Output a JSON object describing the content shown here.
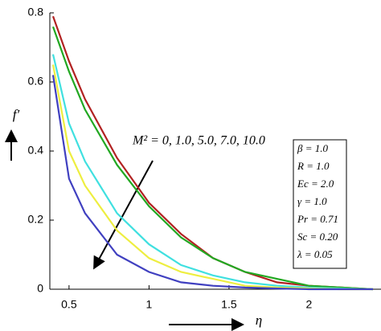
{
  "chart_data": {
    "type": "line",
    "x_label": "η",
    "y_label": "f′",
    "annotation": "M² = 0, 1.0, 5.0, 7.0, 10.0",
    "parameters": [
      "β = 1.0",
      "R = 1.0",
      "Ec = 2.0",
      "γ = 1.0",
      "Pr = 0.71",
      "Sc = 0.20",
      "λ = 0.05"
    ],
    "x": [
      0.4,
      0.5,
      0.6,
      0.8,
      1.0,
      1.2,
      1.4,
      1.6,
      1.8,
      2.0,
      2.2,
      2.4
    ],
    "series": [
      {
        "color": "#b22222",
        "values": [
          0.79,
          0.66,
          0.55,
          0.38,
          0.25,
          0.16,
          0.09,
          0.05,
          0.02,
          0.01,
          0.005,
          0
        ]
      },
      {
        "color": "#22a822",
        "values": [
          0.76,
          0.63,
          0.52,
          0.36,
          0.24,
          0.15,
          0.09,
          0.05,
          0.03,
          0.01,
          0.005,
          0
        ]
      },
      {
        "color": "#40e0e0",
        "values": [
          0.68,
          0.48,
          0.37,
          0.22,
          0.13,
          0.07,
          0.04,
          0.02,
          0.01,
          0.005,
          0.002,
          0
        ]
      },
      {
        "color": "#eeee40",
        "values": [
          0.65,
          0.4,
          0.3,
          0.17,
          0.09,
          0.05,
          0.03,
          0.01,
          0.005,
          0.002,
          0,
          0
        ]
      },
      {
        "color": "#4040c0",
        "values": [
          0.62,
          0.32,
          0.22,
          0.1,
          0.05,
          0.02,
          0.01,
          0.005,
          0.002,
          0,
          0,
          0
        ]
      }
    ],
    "xlim": [
      0.38,
      2.45
    ],
    "ylim": [
      0,
      0.8
    ],
    "xticks": [
      0.5,
      1,
      1.5,
      2
    ],
    "yticks": [
      0,
      0.2,
      0.4,
      0.6,
      0.8
    ]
  }
}
